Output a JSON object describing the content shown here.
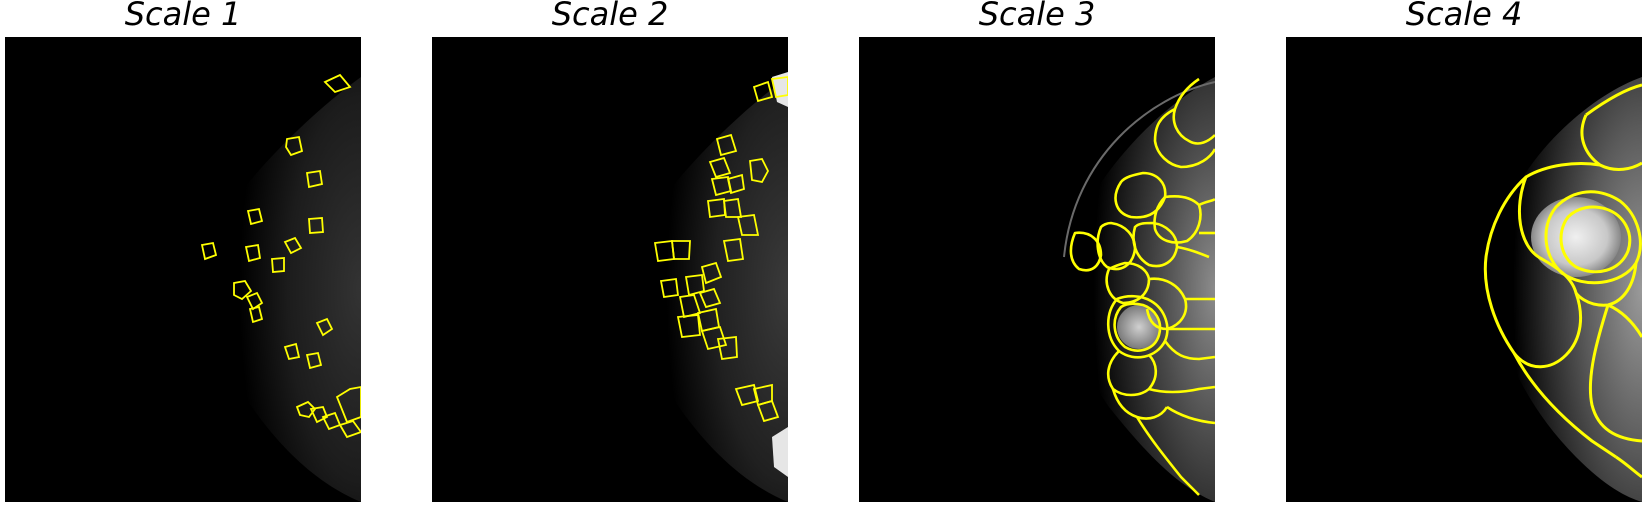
{
  "panels": [
    {
      "title": "Scale 1"
    },
    {
      "title": "Scale 2"
    },
    {
      "title": "Scale 3"
    },
    {
      "title": "Scale 4"
    }
  ],
  "colors": {
    "outline": "#ffff00",
    "background": "#000000",
    "page": "#ffffff"
  }
}
